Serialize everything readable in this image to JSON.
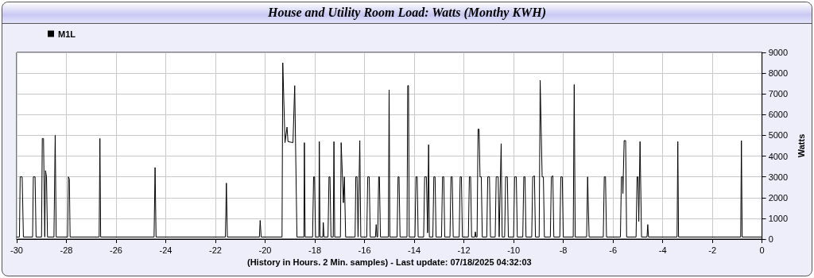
{
  "chart_data": {
    "type": "line",
    "title": "House and Utility Room Load: Watts (Monthy KWH)",
    "xlabel": "(History in Hours. 2 Min. samples) - Last update: 07/18/2025 04:32:03",
    "ylabel": "Watts",
    "xlim": [
      -30,
      0
    ],
    "xticks": [
      -30,
      -28,
      -26,
      -24,
      -22,
      -20,
      -18,
      -16,
      -14,
      -12,
      -10,
      -8,
      -6,
      -4,
      -2,
      0
    ],
    "ylim": [
      0,
      9000
    ],
    "yticks": [
      0,
      1000,
      2000,
      3000,
      4000,
      5000,
      6000,
      7000,
      8000,
      9000
    ],
    "grid": true,
    "legend": "top left",
    "marker": "none",
    "line_style": "solid",
    "series": [
      {
        "name": "M1L",
        "color": "#000000",
        "x": [
          -30,
          -29.89,
          -29.86,
          -29.78,
          -29.73,
          -29.36,
          -29.33,
          -29.26,
          -29.22,
          -29.0,
          -28.97,
          -28.92,
          -28.87,
          -28.84,
          -28.8,
          -28.76,
          -28.5,
          -28.45,
          -28.41,
          -27.95,
          -27.92,
          -27.88,
          -27.85,
          -26.68,
          -26.65,
          -26.62,
          -24.47,
          -24.43,
          -24.39,
          -21.6,
          -21.56,
          -21.52,
          -20.23,
          -20.2,
          -20.16,
          -19.32,
          -19.29,
          -19.2,
          -19.12,
          -19.08,
          -18.88,
          -18.81,
          -18.79,
          -18.72,
          -18.44,
          -18.42,
          -18.39,
          -18.09,
          -18.05,
          -18.01,
          -17.97,
          -17.84,
          -17.82,
          -17.79,
          -17.68,
          -17.66,
          -17.63,
          -17.47,
          -17.43,
          -17.39,
          -17.35,
          -17.26,
          -17.23,
          -17.2,
          -16.97,
          -16.94,
          -16.85,
          -16.81,
          -16.76,
          -16.38,
          -16.35,
          -16.3,
          -16.26,
          -16.19,
          -16.15,
          -15.91,
          -15.87,
          -15.81,
          -15.77,
          -15.56,
          -15.53,
          -15.5,
          -15.47,
          -15.43,
          -15.4,
          -15.36,
          -15.04,
          -15.01,
          -14.98,
          -14.69,
          -14.65,
          -14.61,
          -14.57,
          -14.29,
          -14.26,
          -14.23,
          -14.2,
          -13.97,
          -13.93,
          -13.88,
          -13.84,
          -13.62,
          -13.58,
          -13.51,
          -13.46,
          -13.42,
          -13.39,
          -13.25,
          -13.21,
          -13.16,
          -13.12,
          -12.9,
          -12.86,
          -12.81,
          -12.77,
          -12.56,
          -12.52,
          -12.47,
          -12.43,
          -12.19,
          -12.15,
          -12.1,
          -12.06,
          -11.82,
          -11.78,
          -11.73,
          -11.69,
          -11.56,
          -11.54,
          -11.51,
          -11.47,
          -11.43,
          -11.39,
          -11.35,
          -11.3,
          -11.26,
          -11.08,
          -11.04,
          -10.97,
          -10.93,
          -10.74,
          -10.7,
          -10.62,
          -10.58,
          -10.5,
          -10.46,
          -10.36,
          -10.32,
          -10.25,
          -10.21,
          -10.0,
          -9.96,
          -9.89,
          -9.85,
          -9.63,
          -9.59,
          -9.54,
          -9.5,
          -9.27,
          -9.23,
          -9.16,
          -9.12,
          -8.97,
          -8.93,
          -8.85,
          -8.8,
          -8.76,
          -8.52,
          -8.48,
          -8.42,
          -8.38,
          -8.14,
          -8.1,
          -8.04,
          -8.0,
          -7.6,
          -7.56,
          -7.52,
          -7.06,
          -7.02,
          -7.0,
          -6.96,
          -6.39,
          -6.35,
          -6.3,
          -6.26,
          -5.7,
          -5.66,
          -5.61,
          -5.6,
          -5.55,
          -5.49,
          -5.45,
          -5.07,
          -5.03,
          -4.99,
          -4.96,
          -4.91,
          -4.89,
          -4.85,
          -4.63,
          -4.6,
          -4.57,
          -3.42,
          -3.39,
          -3.36,
          -0.86,
          -0.83,
          -0.8,
          0
        ],
        "values": [
          100,
          100,
          3000,
          3000,
          100,
          100,
          3000,
          3000,
          100,
          100,
          4850,
          4850,
          100,
          3300,
          3000,
          100,
          100,
          5000,
          100,
          100,
          3000,
          2900,
          100,
          100,
          4850,
          100,
          100,
          3450,
          100,
          100,
          2700,
          100,
          100,
          900,
          100,
          100,
          8500,
          4650,
          5400,
          4700,
          4650,
          7400,
          7400,
          100,
          100,
          4650,
          100,
          100,
          3000,
          3000,
          100,
          100,
          4700,
          100,
          100,
          800,
          100,
          100,
          3000,
          3000,
          100,
          100,
          4700,
          100,
          100,
          4650,
          1750,
          3000,
          100,
          100,
          3000,
          3000,
          100,
          4750,
          100,
          100,
          3000,
          3000,
          100,
          100,
          700,
          100,
          100,
          3000,
          3000,
          100,
          100,
          7200,
          100,
          100,
          3000,
          3000,
          100,
          100,
          7400,
          7400,
          100,
          100,
          3000,
          3000,
          100,
          100,
          3000,
          3000,
          300,
          4550,
          100,
          100,
          3000,
          3000,
          100,
          100,
          3000,
          3000,
          100,
          100,
          3000,
          3000,
          100,
          100,
          3000,
          3000,
          100,
          100,
          3000,
          3000,
          100,
          100,
          350,
          100,
          100,
          5300,
          5300,
          3000,
          3000,
          100,
          100,
          3000,
          3000,
          100,
          100,
          3000,
          3000,
          100,
          4600,
          100,
          100,
          3000,
          3000,
          100,
          100,
          3000,
          3000,
          100,
          100,
          3000,
          3000,
          100,
          100,
          3000,
          3050,
          100,
          100,
          7650,
          3000,
          3000,
          100,
          100,
          3000,
          3050,
          100,
          100,
          3000,
          3000,
          100,
          100,
          7450,
          100,
          100,
          3000,
          3000,
          100,
          100,
          3000,
          3000,
          100,
          100,
          3000,
          3000,
          2200,
          4750,
          4750,
          100,
          100,
          3000,
          3000,
          850,
          4700,
          4700,
          100,
          100,
          700,
          100,
          100,
          4700,
          100,
          100,
          4750,
          100,
          100
        ]
      }
    ]
  }
}
